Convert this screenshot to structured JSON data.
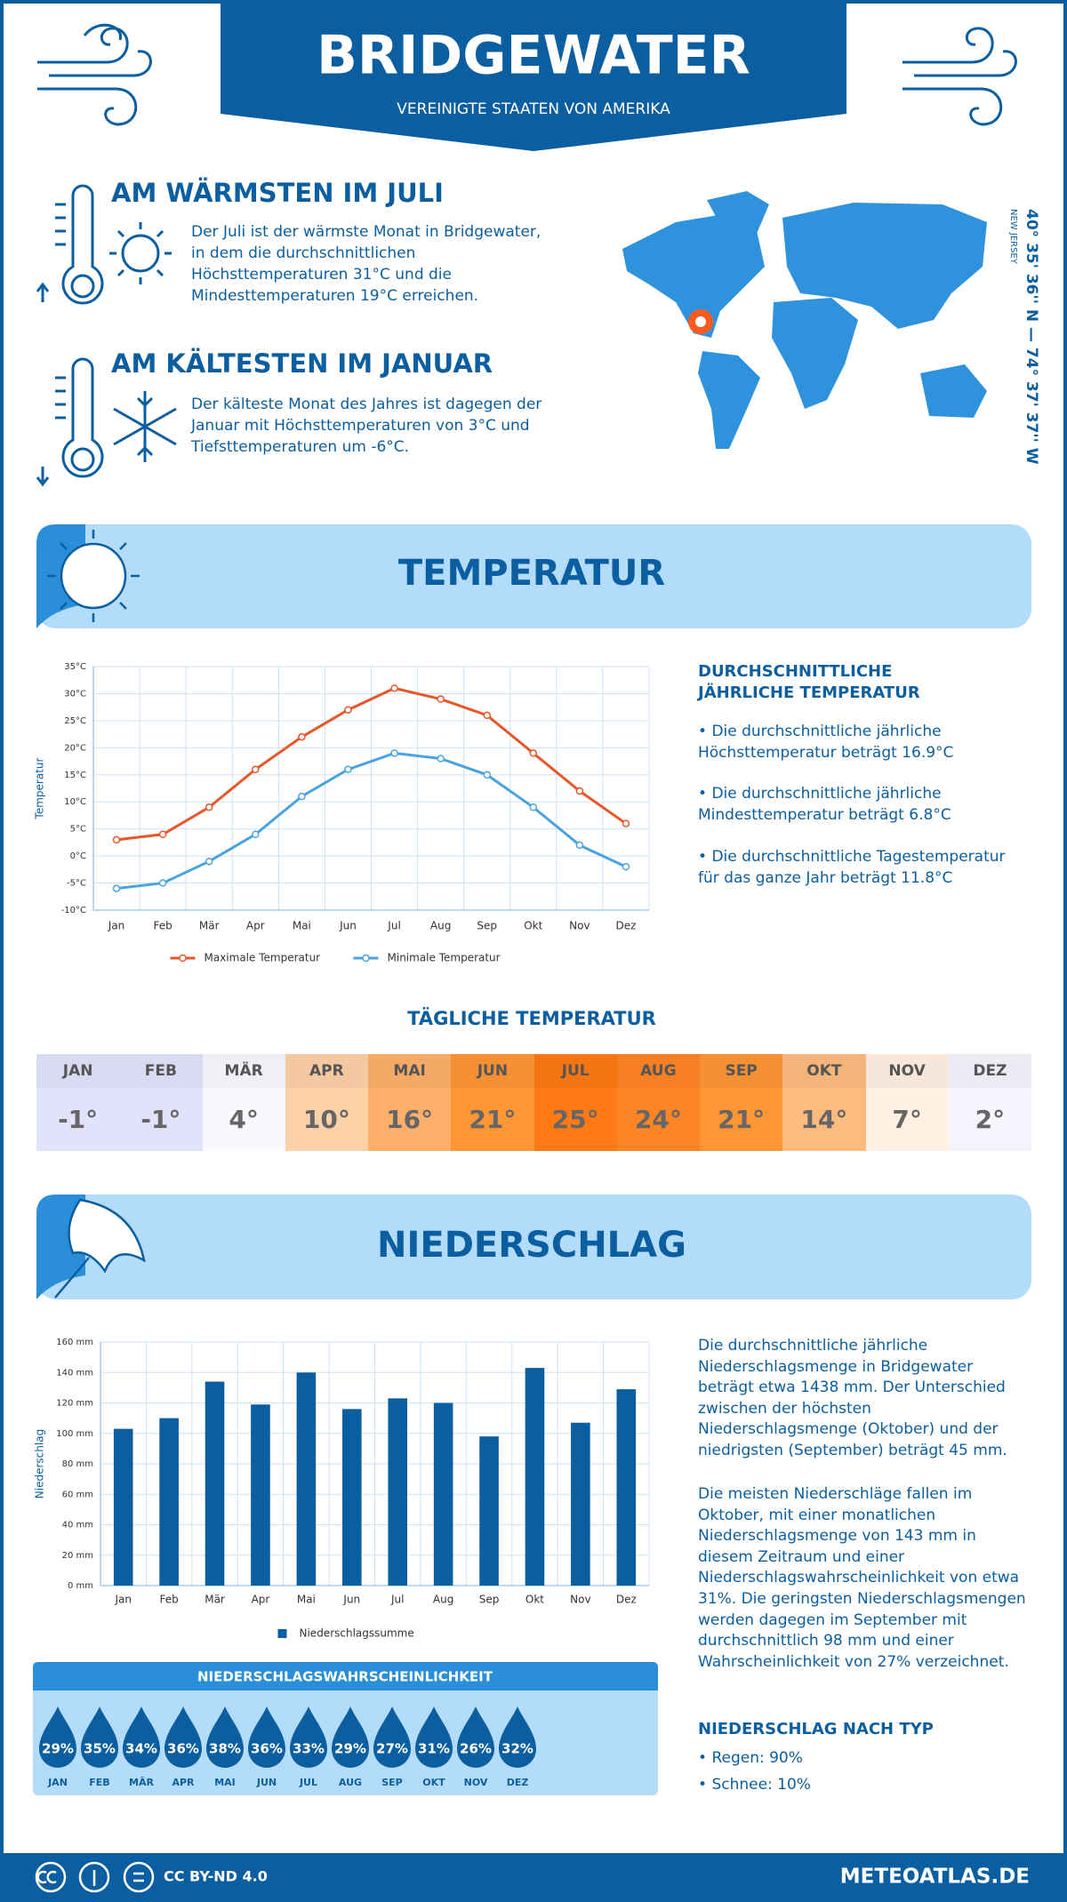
{
  "header": {
    "title": "BRIDGEWATER",
    "subtitle": "VEREINIGTE STAATEN VON AMERIKA"
  },
  "warmest": {
    "title": "AM WÄRMSTEN IM JULI",
    "text": "Der Juli ist der wärmste Monat in Bridgewater, in dem die durchschnittlichen Höchsttemperaturen 31°C und die Mindesttemperaturen 19°C erreichen."
  },
  "coldest": {
    "title": "AM KÄLTESTEN IM JANUAR",
    "text": "Der kälteste Monat des Jahres ist dagegen der Januar mit Höchsttemperaturen von 3°C und Tiefsttemperaturen um -6°C."
  },
  "map": {
    "coordinates": "40° 35' 36'' N — 74° 37' 37'' W",
    "region": "NEW JERSEY"
  },
  "temperature_section": {
    "title": "TEMPERATUR",
    "summary_title": "DURCHSCHNITTLICHE JÄHRLICHE TEMPERATUR",
    "bullets": [
      "Die durchschnittliche jährliche Höchsttemperatur beträgt 16.9°C",
      "Die durchschnittliche jährliche Mindesttemperatur beträgt 6.8°C",
      "Die durchschnittliche Tagestemperatur für das ganze Jahr beträgt 11.8°C"
    ]
  },
  "daily_temperature": {
    "title": "TÄGLICHE TEMPERATUR",
    "months": [
      "JAN",
      "FEB",
      "MÄR",
      "APR",
      "MAI",
      "JUN",
      "JUL",
      "AUG",
      "SEP",
      "OKT",
      "NOV",
      "DEZ"
    ],
    "values": [
      "-1°",
      "-1°",
      "4°",
      "10°",
      "16°",
      "21°",
      "25°",
      "24°",
      "21°",
      "14°",
      "7°",
      "2°"
    ],
    "colors": [
      "#e2e2fc",
      "#e2e2fc",
      "#f8f8ff",
      "#fdd1a8",
      "#feb06a",
      "#fe9636",
      "#ff7a14",
      "#fe8424",
      "#fe9636",
      "#febb7e",
      "#fff0e2",
      "#f4f4fd"
    ]
  },
  "precipitation_section": {
    "title": "NIEDERSCHLAG",
    "paragraphs": [
      "Die durchschnittliche jährliche Niederschlagsmenge in Bridgewater beträgt etwa 1438 mm. Der Unterschied zwischen der höchsten Niederschlagsmenge (Oktober) und der niedrigsten (September) beträgt 45 mm.",
      "Die meisten Niederschläge fallen im Oktober, mit einer monatlichen Niederschlagsmenge von 143 mm in diesem Zeitraum und einer Niederschlagswahrscheinlichkeit von etwa 31%. Die geringsten Niederschlagsmengen werden dagegen im September mit durchschnittlich 98 mm und einer Wahrscheinlichkeit von 27% verzeichnet."
    ],
    "type_title": "NIEDERSCHLAG NACH TYP",
    "types": [
      "Regen: 90%",
      "Schnee: 10%"
    ]
  },
  "probability": {
    "title": "NIEDERSCHLAGSWAHRSCHEINLICHKEIT",
    "months": [
      "JAN",
      "FEB",
      "MÄR",
      "APR",
      "MAI",
      "JUN",
      "JUL",
      "AUG",
      "SEP",
      "OKT",
      "NOV",
      "DEZ"
    ],
    "values": [
      "29%",
      "35%",
      "34%",
      "36%",
      "38%",
      "36%",
      "33%",
      "29%",
      "27%",
      "31%",
      "26%",
      "32%"
    ]
  },
  "footer": {
    "license": "CC BY-ND 4.0",
    "site": "METEOATLAS.DE"
  },
  "chart_data": [
    {
      "type": "line",
      "y_label": "Temperatur",
      "categories": [
        "Jan",
        "Feb",
        "Mär",
        "Apr",
        "Mai",
        "Jun",
        "Jul",
        "Aug",
        "Sep",
        "Okt",
        "Nov",
        "Dez"
      ],
      "series": [
        {
          "name": "Maximale Temperatur",
          "color": "#e8572a",
          "values": [
            3,
            4,
            9,
            16,
            22,
            27,
            31,
            29,
            26,
            19,
            12,
            6
          ]
        },
        {
          "name": "Minimale Temperatur",
          "color": "#4aa3df",
          "values": [
            -6,
            -5,
            -1,
            4,
            11,
            16,
            19,
            18,
            15,
            9,
            2,
            -2
          ]
        }
      ],
      "ylim": [
        -10,
        35
      ],
      "yticks": [
        {
          "value": -10,
          "label": "-10°C"
        },
        {
          "value": -5,
          "label": "-5°C"
        },
        {
          "value": 0,
          "label": "0°C"
        },
        {
          "value": 5,
          "label": "5°C"
        },
        {
          "value": 10,
          "label": "10°C"
        },
        {
          "value": 15,
          "label": "15°C"
        },
        {
          "value": 20,
          "label": "20°C"
        },
        {
          "value": 25,
          "label": "25°C"
        },
        {
          "value": 30,
          "label": "30°C"
        },
        {
          "value": 35,
          "label": "35°C"
        }
      ],
      "grid": true,
      "legend": "bottom"
    },
    {
      "type": "bar",
      "y_label": "Niederschlag",
      "categories": [
        "Jan",
        "Feb",
        "Mär",
        "Apr",
        "Mai",
        "Jun",
        "Jul",
        "Aug",
        "Sep",
        "Okt",
        "Nov",
        "Dez"
      ],
      "series": [
        {
          "name": "Niederschlagssumme",
          "color": "#0b5e9f",
          "values": [
            103,
            110,
            134,
            119,
            140,
            116,
            123,
            120,
            98,
            143,
            107,
            129
          ]
        }
      ],
      "ylim": [
        0,
        160
      ],
      "yticks": [
        {
          "value": 0,
          "label": "0 mm"
        },
        {
          "value": 20,
          "label": "20 mm"
        },
        {
          "value": 40,
          "label": "40 mm"
        },
        {
          "value": 60,
          "label": "60 mm"
        },
        {
          "value": 80,
          "label": "80 mm"
        },
        {
          "value": 100,
          "label": "100 mm"
        },
        {
          "value": 120,
          "label": "120 mm"
        },
        {
          "value": 140,
          "label": "140 mm"
        },
        {
          "value": 160,
          "label": "160 mm"
        }
      ],
      "grid": true,
      "legend": "bottom"
    }
  ]
}
